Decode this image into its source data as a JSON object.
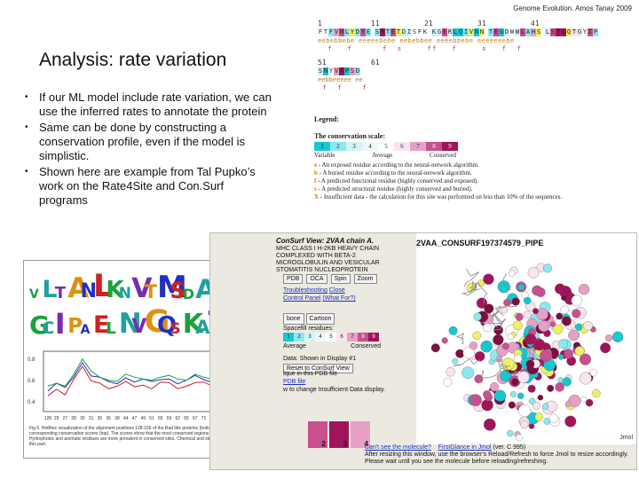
{
  "header": {
    "text": "Genome Evolution. Amos Tanay 2009"
  },
  "slide": {
    "title": "Analysis: rate variation",
    "bullets": [
      "If our ML model include rate variation, we can use the inferred rates to annotate the protein",
      "Same can be done by constructing a conservation profile, even if the model is simplistic.",
      "Shown here are example from Tal Pupko’s work on the Rate4Site and Con.Surf programs"
    ],
    "bullet_marker": "•"
  },
  "consurf": {
    "numbers_row1": [
      "1",
      "11",
      "21",
      "31",
      "41"
    ],
    "seq_row1": "FTFVNLYDYE SRTETDISFK KGERLQIVNN TEGDWWLAHS LSTGQTGYIP",
    "pred_row1": "eebebbebe eeeeebebe eebebbee eeeebbebe eeeeeeebe",
    "marks_row1": "  f   f      f  s     ff   f     s   f  f",
    "numbers_row2": [
      "51",
      "61"
    ],
    "seq_row2": "SNYVAPSD",
    "pred_row2": "eebbeeeee ee",
    "marks_row2": " f  f    f",
    "legend_title": "Legend:",
    "scale_title": "The conservation scale:",
    "scale_values": [
      "1",
      "2",
      "3",
      "4",
      "5",
      "6",
      "7",
      "8",
      "9"
    ],
    "scale_colors": [
      "#16c8d2",
      "#8ce8f0",
      "#d2f4f6",
      "#eaf8fa",
      "#ffffff",
      "#f8e4ee",
      "#e6a0c6",
      "#c8508e",
      "#a0155a"
    ],
    "scale_labels": [
      "Variable",
      "Average",
      "Conserved"
    ],
    "legend_lines": [
      {
        "key": "e",
        "text": "- An exposed residue according to the neural-network algorithm."
      },
      {
        "key": "b",
        "text": "- A buried residue according to the neural-network algorithm."
      },
      {
        "key": "f",
        "text": "- A predicted functional residue (highly conserved and exposed)."
      },
      {
        "key": "s",
        "text": "- A predicted structural residue (highly conserved and buried)."
      },
      {
        "key": "X",
        "text": "- Insufficient data - the calculation for this site was performed on less than 10% of the sequences."
      }
    ]
  },
  "figure": {
    "logo_letters": [
      "V",
      "L",
      "T",
      "A",
      "N",
      "L",
      "K",
      "N",
      "V",
      "T",
      "M",
      "S",
      "D",
      "A",
      "E",
      "N",
      "F",
      "R",
      "G",
      "C",
      "I",
      "P",
      "A",
      "E",
      "L",
      "N",
      "V",
      "G",
      "Q",
      "S",
      "K",
      "A",
      "T",
      "Y",
      "I",
      "E"
    ],
    "x_ticks": [
      "128",
      "25",
      "27",
      "28",
      "30",
      "31",
      "35",
      "36",
      "38",
      "44",
      "47",
      "49",
      "51",
      "55",
      "59",
      "62",
      "65",
      "67",
      "71",
      "75",
      "79",
      "84",
      "87",
      "92",
      "94"
    ],
    "y_ticks": [
      "0.8",
      "0.6",
      "0.4"
    ],
    "caption": "Fig 6. HinBioc visualization of the alignment positions 128-156 of the Rad like proteins (bottom) and the corresponding conservation scores (top). The scores show that the most conserved regions fall among motifs. Hydrophobic and aromatic residues are more prevalent in conserved sites. Chemical and structural information for this part."
  },
  "consurf_view": {
    "title": "ConSurf View: 2VAA chain A.",
    "subtitle": "MHC CLASS I H-2KB HEAVY CHAIN COMPLEXED WITH BETA-2 MICROGLOBULIN AND VESICULAR STOMATITIS NUCLEOPROTEIN",
    "buttons": [
      "PDB",
      "OCA",
      "Spin",
      "Zoom"
    ],
    "links": [
      "Troubleshooting",
      "Close",
      "Control Panel",
      "(What For?)"
    ],
    "mode_buttons": [
      "bone",
      "Cartoon"
    ],
    "spacefill_label": "Spacefill residues:",
    "scale_values": [
      "1",
      "2",
      "3",
      "4",
      "5",
      "6",
      "7",
      "8",
      "9"
    ],
    "scale_labels": [
      "Average",
      "Conserved"
    ],
    "show_text": "Data: Shown in Display #1",
    "reset_button": "Reset to ConSurf View",
    "pdb_text": "Ique in this PDB file",
    "pdb_link": "PDB file",
    "insufficient_text": "w to change Insufficient Data display.",
    "thumbs": [
      "2",
      "3",
      "4"
    ],
    "jmol_title": "2VAA_CONSURF197374579_PIPE",
    "jmol_tag": "Jmol",
    "cant_see": "Can't see the molecule?",
    "firstglance": "FirstGlance in Jmol",
    "version": "(ver. C 995)",
    "resize_text": "After resizing this window, use the browser's Reload/Refresh to force Jmol to resize accordingly. Please wait until you see the molecule before reloading/refreshing."
  }
}
